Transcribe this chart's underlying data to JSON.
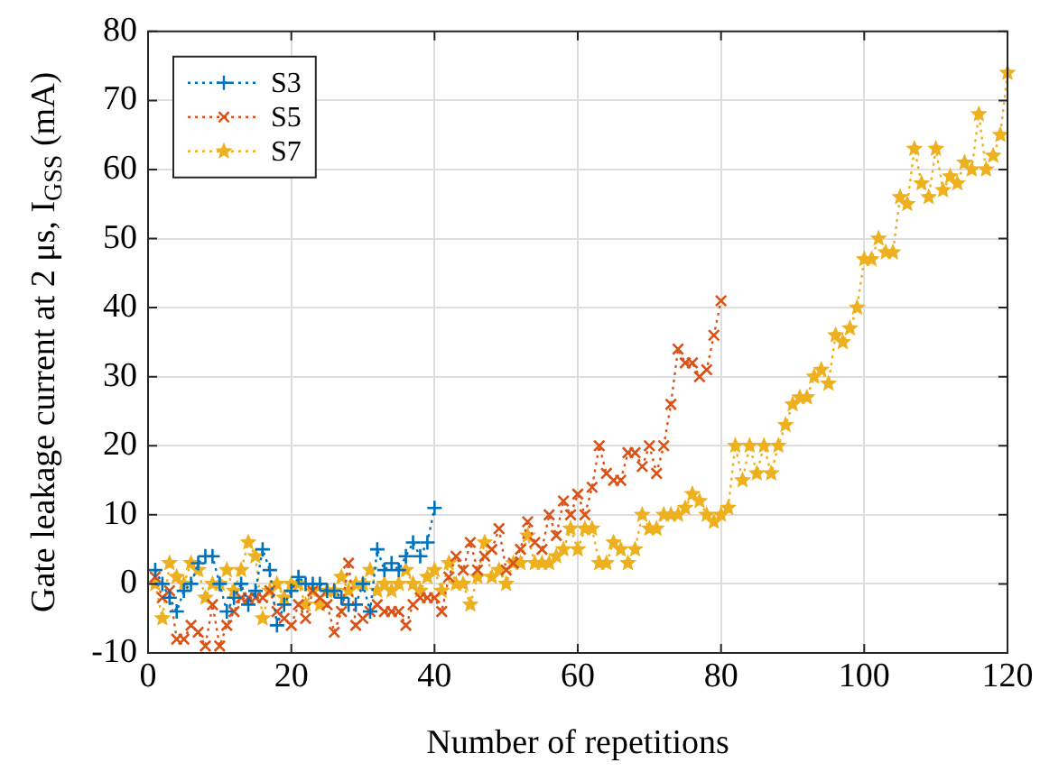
{
  "chart_data": {
    "type": "line",
    "xlabel": "Number of repetitions",
    "ylabel": "Gate leakage current at 2 μs, I$_{GSS}$ (mA)",
    "xlim": [
      0,
      120
    ],
    "xticks": [
      0,
      20,
      40,
      60,
      80,
      100,
      120
    ],
    "ylim": [
      -10,
      80
    ],
    "yticks": [
      -10,
      0,
      10,
      20,
      30,
      40,
      50,
      60,
      70,
      80
    ],
    "grid": true,
    "legend": "top left",
    "line_style": "dotted",
    "series": [
      {
        "name": "S3",
        "color": "#0072bd",
        "marker": "cross",
        "x": [
          1,
          2,
          3,
          4,
          5,
          6,
          7,
          8,
          9,
          10,
          11,
          12,
          13,
          14,
          15,
          16,
          17,
          18,
          19,
          20,
          21,
          22,
          23,
          24,
          25,
          26,
          27,
          28,
          29,
          30,
          31,
          32,
          33,
          34,
          35,
          36,
          37,
          38,
          39,
          40
        ],
        "values": [
          2,
          0,
          -2,
          -4,
          -1,
          0,
          3,
          4,
          4,
          0,
          -4,
          -2,
          0,
          -3,
          -1,
          5,
          2,
          -6,
          -3,
          -1,
          1,
          0,
          0,
          0,
          -1,
          -1,
          -2,
          -3,
          -3,
          0,
          -4,
          5,
          2,
          3,
          2,
          4,
          6,
          4,
          6,
          11
        ]
      },
      {
        "name": "S5",
        "color": "#d95319",
        "marker": "x",
        "x": [
          1,
          2,
          3,
          4,
          5,
          6,
          7,
          8,
          9,
          10,
          11,
          12,
          13,
          14,
          15,
          16,
          17,
          18,
          19,
          20,
          21,
          22,
          23,
          24,
          25,
          26,
          27,
          28,
          29,
          30,
          31,
          32,
          33,
          34,
          35,
          36,
          37,
          38,
          39,
          40,
          41,
          42,
          43,
          44,
          45,
          46,
          47,
          48,
          49,
          50,
          51,
          52,
          53,
          54,
          55,
          56,
          57,
          58,
          59,
          60,
          61,
          62,
          63,
          64,
          65,
          66,
          67,
          68,
          69,
          70,
          71,
          72,
          73,
          74,
          75,
          76,
          77,
          78,
          79,
          80
        ],
        "values": [
          1,
          -2,
          -1,
          -8,
          -8,
          -6,
          -7,
          -9,
          -3,
          -9,
          -6,
          -4,
          -2,
          -2,
          -2,
          -2,
          -1,
          -4,
          -5,
          -6,
          -3,
          -5,
          -1,
          -2,
          -3,
          -7,
          -4,
          3,
          -6,
          -5,
          -4,
          -3,
          -4,
          -4,
          -4,
          -6,
          -3,
          -2,
          -2,
          -2,
          -4,
          1,
          4,
          2,
          6,
          2,
          4,
          5,
          8,
          2,
          3,
          5,
          9,
          6,
          5,
          10,
          7,
          12,
          10,
          13,
          10,
          14,
          20,
          16,
          15,
          15,
          19,
          19,
          17,
          20,
          16,
          20,
          26,
          34,
          32,
          32,
          30,
          31,
          36,
          41
        ]
      },
      {
        "name": "S7",
        "color": "#edb120",
        "marker": "star",
        "x": [
          1,
          2,
          3,
          4,
          5,
          6,
          7,
          8,
          9,
          10,
          11,
          12,
          13,
          14,
          15,
          16,
          17,
          18,
          19,
          20,
          21,
          22,
          23,
          24,
          25,
          26,
          27,
          28,
          29,
          30,
          31,
          32,
          33,
          34,
          35,
          36,
          37,
          38,
          39,
          40,
          41,
          42,
          43,
          44,
          45,
          46,
          47,
          48,
          49,
          50,
          51,
          52,
          53,
          54,
          55,
          56,
          57,
          58,
          59,
          60,
          61,
          62,
          63,
          64,
          65,
          66,
          67,
          68,
          69,
          70,
          71,
          72,
          73,
          74,
          75,
          76,
          77,
          78,
          79,
          80,
          81,
          82,
          83,
          84,
          85,
          86,
          87,
          88,
          89,
          90,
          91,
          92,
          93,
          94,
          95,
          96,
          97,
          98,
          99,
          100,
          101,
          102,
          103,
          104,
          105,
          106,
          107,
          108,
          109,
          110,
          111,
          112,
          113,
          114,
          115,
          116,
          117,
          118,
          119,
          120
        ],
        "values": [
          0,
          -5,
          3,
          1,
          0,
          3,
          2,
          -2,
          0,
          0,
          2,
          -1,
          2,
          6,
          4,
          -5,
          -1,
          0,
          -2,
          0,
          0,
          -3,
          -1,
          -3,
          -1,
          -1,
          1,
          -1,
          0,
          0,
          2,
          -1,
          0,
          -1,
          0,
          2,
          0,
          -1,
          1,
          2,
          -1,
          3,
          0,
          0,
          -3,
          1,
          6,
          1,
          2,
          0,
          3,
          3,
          7,
          3,
          3,
          3,
          4,
          5,
          8,
          5,
          8,
          8,
          3,
          3,
          6,
          5,
          3,
          5,
          10,
          8,
          8,
          10,
          10,
          10,
          11,
          13,
          12,
          10,
          9,
          10,
          11,
          20,
          15,
          20,
          16,
          20,
          16,
          20,
          23,
          26,
          27,
          27,
          30,
          31,
          29,
          36,
          35,
          37,
          40,
          47,
          47,
          50,
          48,
          48,
          56,
          55,
          63,
          58,
          56,
          63,
          57,
          59,
          58,
          61,
          60,
          68,
          60,
          62,
          65,
          74
        ]
      }
    ]
  }
}
